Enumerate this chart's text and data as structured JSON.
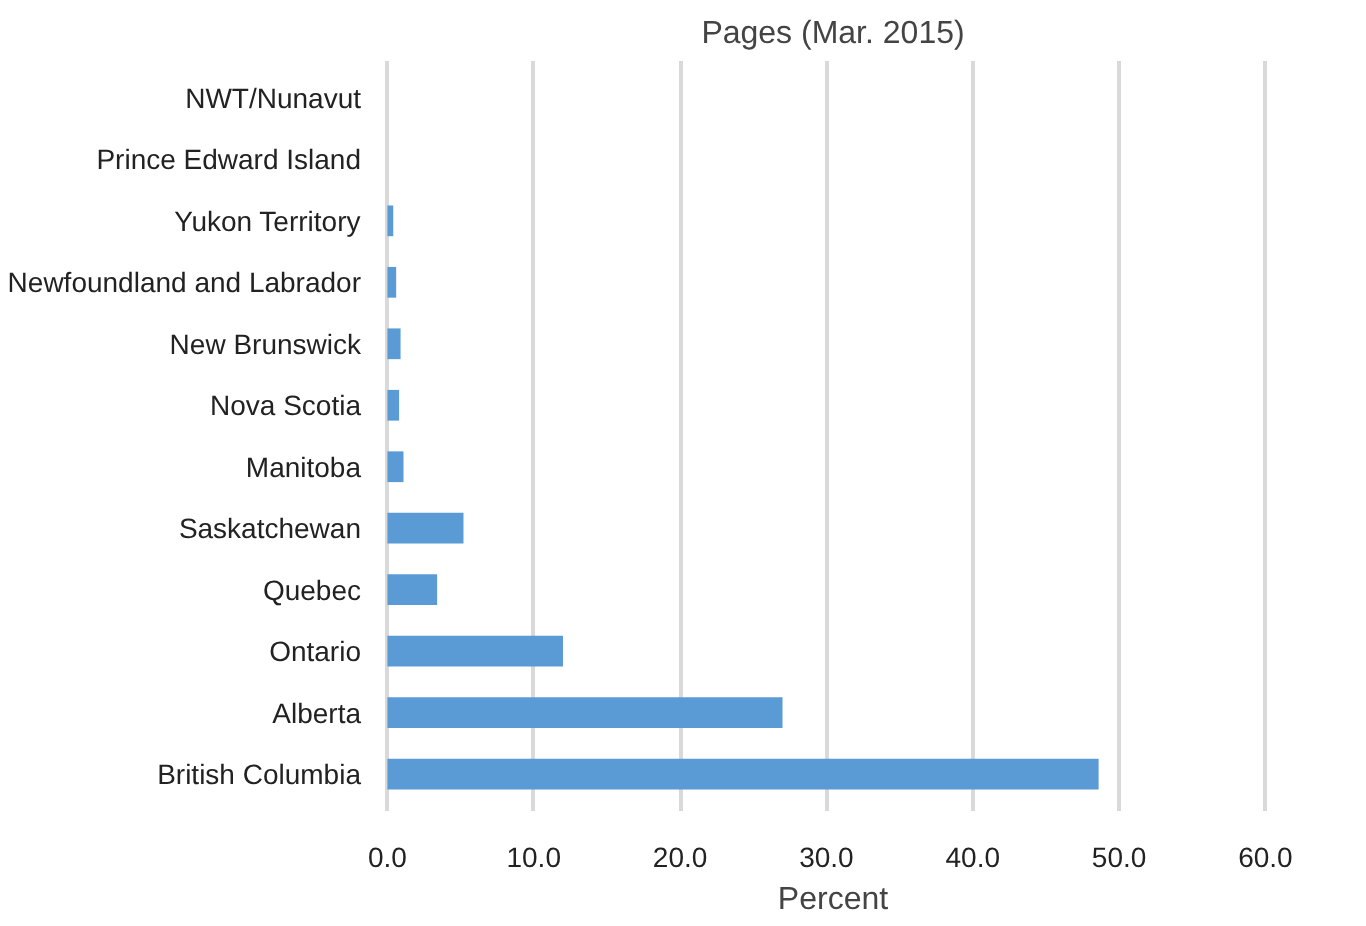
{
  "chart_data": {
    "type": "bar",
    "orientation": "horizontal",
    "title": "Pages (Mar. 2015)",
    "xlabel": "Percent",
    "categories": [
      "NWT/Nunavut",
      "Prince Edward Island",
      "Yukon Territory",
      "Newfoundland and Labrador",
      "New Brunswick",
      "Nova Scotia",
      "Manitoba",
      "Saskatchewan",
      "Quebec",
      "Ontario",
      "Alberta",
      "British Columbia"
    ],
    "values": [
      0,
      0,
      0.4,
      0.6,
      0.9,
      0.8,
      1.1,
      5.2,
      3.4,
      12.0,
      27.0,
      48.6
    ],
    "color": "#5b9bd5",
    "xlim": [
      0,
      60
    ],
    "xticks": [
      {
        "value": 0,
        "label": "0.0"
      },
      {
        "value": 10,
        "label": "10.0"
      },
      {
        "value": 20,
        "label": "20.0"
      },
      {
        "value": 30,
        "label": "30.0"
      },
      {
        "value": 40,
        "label": "40.0"
      },
      {
        "value": 50,
        "label": "50.0"
      },
      {
        "value": 60,
        "label": "60.0"
      }
    ],
    "grid": "x"
  }
}
